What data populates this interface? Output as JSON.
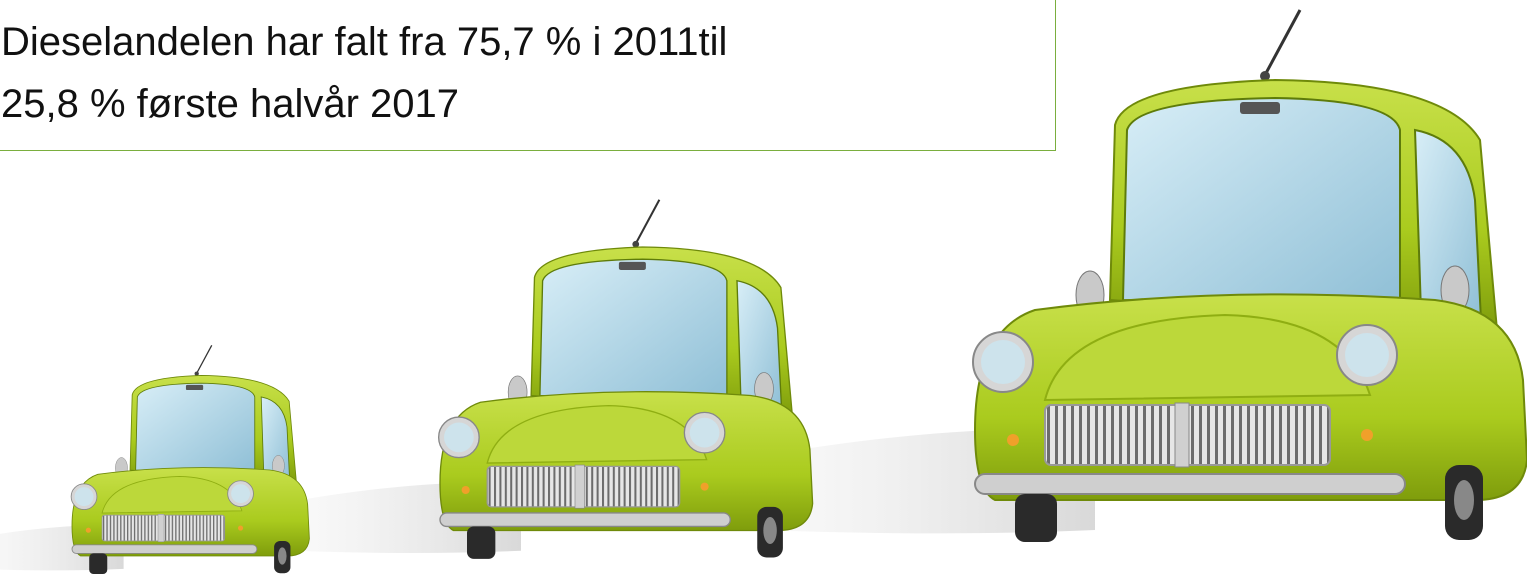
{
  "text_box": {
    "lines": [
      "Dieselandelen har falt fra 75,7 % i 2011til",
      "25,8 % første halvår 2017"
    ]
  }
}
